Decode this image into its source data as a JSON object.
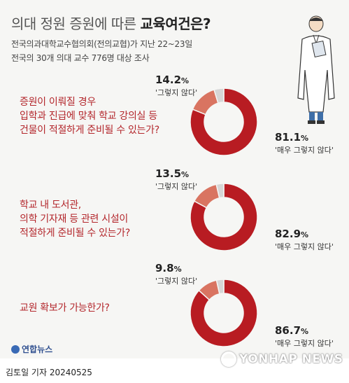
{
  "header": {
    "title_light": "의대 정원 증원에 따른 ",
    "title_bold": "교육여건은?",
    "source_line1": "전국의과대학교수협의회(전의교협)가 지난 22~23일",
    "source_line2": "전국의 30개 의대 교수 776명 대상 조사"
  },
  "chart_data": {
    "type": "pie",
    "charts": [
      {
        "question_lines": [
          "증원이 이뤄질 경우",
          "입학과 진급에 맞춰 학교 강의실 등",
          "건물이 적절하게 준비될 수 있는가?"
        ],
        "slices": [
          {
            "label": "'매우 그렇지 않다'",
            "value": 81.1,
            "display": "81.1",
            "color": "#b81c22"
          },
          {
            "label": "'그렇지 않다'",
            "value": 14.2,
            "display": "14.2",
            "color": "#d97461"
          },
          {
            "label": "",
            "value": 4.7,
            "display": "",
            "color": "#d6d6d6"
          }
        ]
      },
      {
        "question_lines": [
          "학교 내 도서관,",
          "의학 기자재 등 관련 시설이",
          "적절하게 준비될 수 있는가?"
        ],
        "slices": [
          {
            "label": "'매우 그렇지 않다'",
            "value": 82.9,
            "display": "82.9",
            "color": "#b81c22"
          },
          {
            "label": "'그렇지 않다'",
            "value": 13.5,
            "display": "13.5",
            "color": "#d97461"
          },
          {
            "label": "",
            "value": 3.6,
            "display": "",
            "color": "#d6d6d6"
          }
        ]
      },
      {
        "question_lines": [
          "교원 확보가 가능한가?"
        ],
        "slices": [
          {
            "label": "'매우 그렇지 않다'",
            "value": 86.7,
            "display": "86.7",
            "color": "#b81c22"
          },
          {
            "label": "'그렇지 않다'",
            "value": 9.8,
            "display": "9.8",
            "color": "#d97461"
          },
          {
            "label": "",
            "value": 3.5,
            "display": "",
            "color": "#d6d6d6"
          }
        ]
      }
    ],
    "unit": "%"
  },
  "footer": {
    "logo_text": "연합뉴스",
    "watermark": "YONHAP NEWS",
    "byline": "김토일 기자  20240525"
  },
  "icons": {
    "illustration": "doctor-icon",
    "logo": "yonhap-logo-icon"
  }
}
